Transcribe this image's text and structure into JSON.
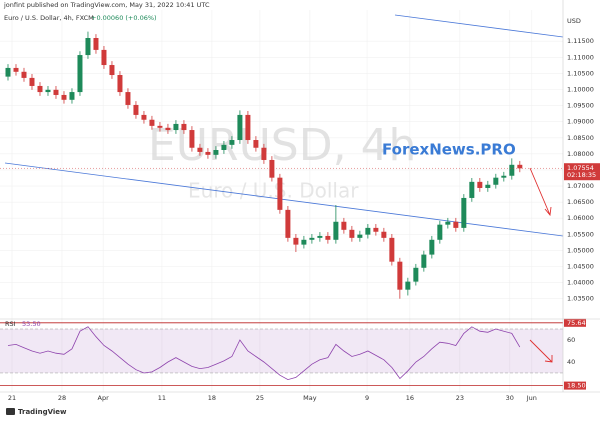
{
  "header": {
    "publisher": "jonfint published on TradingView.com, May 31, 2022 10:41 UTC",
    "symbol": "Euro / U.S. Dollar, 4h, FXCM",
    "change": "+0.00060 (+0.06%)",
    "watermark_symbol": "EURUSD, 4h",
    "watermark_name": "Euro / U.S. Dollar",
    "overlay_text": "ForexNews.PRO",
    "footer": "TradingView"
  },
  "chart_data": [
    {
      "type": "candlestick",
      "currency": "USD",
      "up_color": "#1e8a5a",
      "down_color": "#d03a3a",
      "x": [
        1,
        2,
        3,
        4,
        5,
        6,
        7,
        8,
        9,
        10,
        11,
        12,
        13,
        14,
        15,
        16,
        17,
        18,
        19,
        20,
        21,
        22,
        23,
        24,
        25,
        26,
        27,
        28,
        29,
        30,
        31,
        32,
        33,
        34,
        35,
        36,
        37,
        38,
        39,
        40,
        41,
        42,
        43,
        44,
        45,
        46,
        47,
        48,
        49,
        50,
        51,
        52,
        53,
        54,
        55,
        56,
        57,
        58,
        59,
        60,
        61,
        62,
        63,
        64,
        65
      ],
      "series": [
        {
          "open": [
            1.104,
            1.1067,
            1.1055,
            1.1036,
            1.1011,
            1.0992,
            1.0999,
            1.0983,
            1.0968,
            1.0992,
            1.1107,
            1.116,
            1.1123,
            1.1076,
            1.1045,
            1.0992,
            1.0952,
            1.0921,
            1.0906,
            1.0887,
            1.0881,
            1.0874,
            1.0893,
            1.0874,
            1.0819,
            1.0806,
            1.0797,
            1.0812,
            1.0828,
            1.0843,
            1.0921,
            1.0843,
            1.0819,
            1.0781,
            1.0726,
            1.0626,
            1.0539,
            1.0518,
            1.0533,
            1.0539,
            1.0545,
            1.0533,
            1.0589,
            1.0564,
            1.0539,
            1.0549,
            1.057,
            1.0558,
            1.0539,
            1.0465,
            1.0378,
            1.0403,
            1.0446,
            1.0487,
            1.0533,
            1.058,
            1.0589,
            1.057,
            1.0663,
            1.0713,
            1.0694,
            1.0704,
            1.0726,
            1.0732,
            1.0766
          ],
          "high": [
            1.1079,
            1.1079,
            1.1067,
            1.1048,
            1.1023,
            1.1011,
            1.1011,
            1.0995,
            1.1004,
            1.1119,
            1.118,
            1.1172,
            1.1135,
            1.1088,
            1.1057,
            1.1004,
            1.0964,
            1.0933,
            1.0918,
            1.0899,
            1.0893,
            1.0905,
            1.0905,
            1.0886,
            1.0831,
            1.0818,
            1.0824,
            1.084,
            1.0855,
            1.0935,
            1.0933,
            1.0855,
            1.0831,
            1.0793,
            1.0738,
            1.0638,
            1.0551,
            1.0545,
            1.0551,
            1.0557,
            1.0557,
            1.0641,
            1.0601,
            1.0576,
            1.0561,
            1.0582,
            1.0582,
            1.057,
            1.0551,
            1.0477,
            1.0415,
            1.0458,
            1.0499,
            1.0545,
            1.0592,
            1.0601,
            1.0601,
            1.0675,
            1.0725,
            1.0725,
            1.0716,
            1.0738,
            1.0744,
            1.0786,
            1.0778
          ],
          "low": [
            1.1028,
            1.1043,
            1.1024,
            1.0999,
            1.098,
            1.098,
            1.0971,
            1.0956,
            1.0956,
            1.098,
            1.1095,
            1.1111,
            1.1064,
            1.1033,
            1.098,
            1.094,
            1.0909,
            1.0894,
            1.0875,
            1.0869,
            1.0862,
            1.0862,
            1.0862,
            1.0807,
            1.0794,
            1.0785,
            1.0785,
            1.08,
            1.0816,
            1.0831,
            1.0831,
            1.0807,
            1.0769,
            1.0714,
            1.0614,
            1.0527,
            1.0495,
            1.0506,
            1.0521,
            1.0527,
            1.0521,
            1.0521,
            1.0552,
            1.0527,
            1.0527,
            1.0537,
            1.0546,
            1.0527,
            1.0453,
            1.035,
            1.036,
            1.0391,
            1.0434,
            1.0475,
            1.0521,
            1.0568,
            1.0558,
            1.0558,
            1.0651,
            1.0682,
            1.0682,
            1.0692,
            1.0714,
            1.072,
            1.0743
          ],
          "close": [
            1.1067,
            1.1055,
            1.1036,
            1.1011,
            1.0992,
            1.0999,
            1.0983,
            1.0968,
            1.0992,
            1.1107,
            1.116,
            1.1123,
            1.1076,
            1.1045,
            1.0992,
            1.0952,
            1.0921,
            1.0906,
            1.0887,
            1.0881,
            1.0874,
            1.0893,
            1.0874,
            1.0819,
            1.0806,
            1.0797,
            1.0812,
            1.0828,
            1.0843,
            1.0921,
            1.0843,
            1.0819,
            1.0781,
            1.0726,
            1.0626,
            1.0539,
            1.0518,
            1.0533,
            1.0539,
            1.0545,
            1.0533,
            1.0589,
            1.0564,
            1.0539,
            1.0549,
            1.057,
            1.0558,
            1.0539,
            1.0465,
            1.0378,
            1.0403,
            1.0446,
            1.0487,
            1.0533,
            1.058,
            1.0589,
            1.057,
            1.0663,
            1.0713,
            1.0694,
            1.0704,
            1.0726,
            1.0732,
            1.0766,
            1.0755
          ]
        }
      ],
      "last_price": {
        "value": 1.07554,
        "label": "1.07554"
      },
      "countdown": "02:18:35",
      "xlim": [
        0,
        70.4
      ],
      "ylim": [
        1.029,
        1.1247
      ],
      "grid": true,
      "xticks": [
        {
          "value": 1.5,
          "label": "21"
        },
        {
          "value": 7.75,
          "label": "28"
        },
        {
          "value": 12.9,
          "label": "Apr"
        },
        {
          "value": 20.25,
          "label": "11"
        },
        {
          "value": 26.5,
          "label": "18"
        },
        {
          "value": 32.5,
          "label": "25"
        },
        {
          "value": 38.75,
          "label": "May"
        },
        {
          "value": 45.9,
          "label": "9"
        },
        {
          "value": 51.25,
          "label": "16"
        },
        {
          "value": 57.5,
          "label": "23"
        },
        {
          "value": 63.75,
          "label": "30"
        },
        {
          "value": 66.5,
          "label": "Jun"
        }
      ],
      "yticks": [
        {
          "value": 1.035,
          "label": "1.03500"
        },
        {
          "value": 1.04,
          "label": "1.04000"
        },
        {
          "value": 1.045,
          "label": "1.04500"
        },
        {
          "value": 1.05,
          "label": "1.05000"
        },
        {
          "value": 1.055,
          "label": "1.05500"
        },
        {
          "value": 1.06,
          "label": "1.06000"
        },
        {
          "value": 1.065,
          "label": "1.06500"
        },
        {
          "value": 1.07,
          "label": "1.07000"
        },
        {
          "value": 1.075,
          "label": "1.07500"
        },
        {
          "value": 1.08,
          "label": "1.08000"
        },
        {
          "value": 1.085,
          "label": "1.08500"
        },
        {
          "value": 1.09,
          "label": "1.09000"
        },
        {
          "value": 1.095,
          "label": "1.09500"
        },
        {
          "value": 1.1,
          "label": "1.10000"
        },
        {
          "value": 1.105,
          "label": "1.10500"
        },
        {
          "value": 1.11,
          "label": "1.11000"
        },
        {
          "value": 1.115,
          "label": "1.11500"
        }
      ]
    },
    {
      "type": "line",
      "name": "RSI",
      "color": "#8e44ad",
      "series": [
        {
          "name": "RSI",
          "color": "#8e44ad",
          "values": [
            55,
            56,
            53,
            50,
            48,
            50,
            48,
            47,
            52,
            68,
            72,
            63,
            55,
            50,
            44,
            38,
            33,
            30,
            31,
            35,
            40,
            44,
            40,
            36,
            34,
            35,
            38,
            41,
            45,
            60,
            50,
            45,
            40,
            34,
            28,
            24,
            26,
            32,
            38,
            42,
            44,
            56,
            50,
            45,
            47,
            50,
            46,
            42,
            35,
            25,
            32,
            40,
            45,
            52,
            58,
            57,
            55,
            66,
            72,
            68,
            67,
            70,
            68,
            66,
            53.5
          ]
        }
      ],
      "current": {
        "value": 53.5,
        "label": "53.50"
      },
      "band": [
        30,
        70
      ],
      "band_color": "#8e44ad",
      "ylim": [
        14.5,
        78.2
      ],
      "yticks": [
        40,
        60
      ],
      "markers": [
        {
          "value": 75.64,
          "label": "75.64"
        },
        {
          "value": 18.5,
          "label": "18.50"
        }
      ]
    }
  ]
}
